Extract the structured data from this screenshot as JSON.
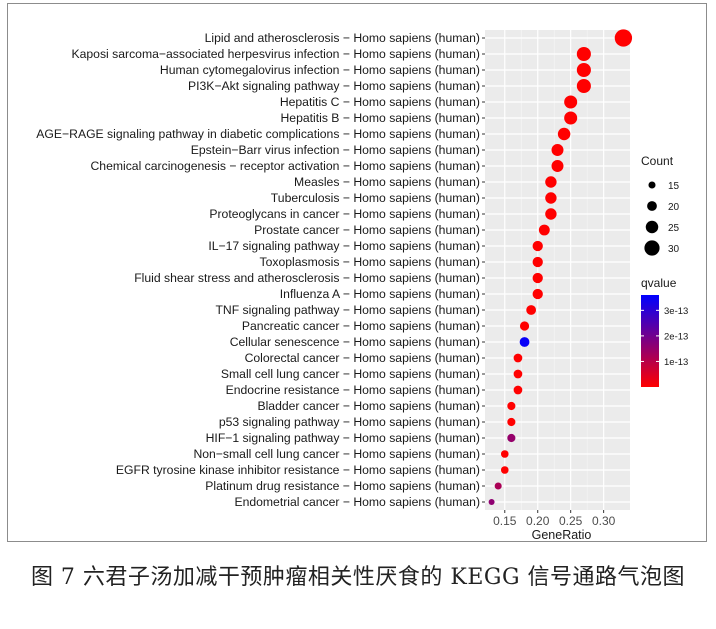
{
  "figure": {
    "caption": "图 7  六君子汤加减干预肿瘤相关性厌食的 KEGG 信号通路气泡图"
  },
  "chart_data": {
    "type": "scatter",
    "subtype": "bubble",
    "xlabel": "GeneRatio",
    "ylabel": "",
    "xlim": [
      0.12,
      0.34
    ],
    "xticks": [
      0.15,
      0.2,
      0.25,
      0.3
    ],
    "xtick_labels": [
      "0.15",
      "0.20",
      "0.25",
      "0.30"
    ],
    "grid": true,
    "background": "#ebebeb",
    "legend_position": "right",
    "size_legend": {
      "title": "Count",
      "values": [
        15,
        20,
        25,
        30
      ],
      "labels": [
        "15",
        "20",
        "25",
        "30"
      ]
    },
    "color_legend": {
      "title": "qvalue",
      "range": [
        0,
        3.6e-13
      ],
      "ticks": [
        1e-13,
        2e-13,
        3e-13
      ],
      "tick_labels": [
        "1e-13",
        "2e-13",
        "3e-13"
      ],
      "low_color": "#ff0000",
      "high_color": "#0000ff"
    },
    "points": [
      {
        "label": "Lipid and atherosclerosis − Homo sapiens (human)",
        "x": 0.33,
        "count": 34,
        "q": 0.0
      },
      {
        "label": "Kaposi sarcoma−associated herpesvirus infection − Homo sapiens (human)",
        "x": 0.27,
        "count": 28,
        "q": 0.0
      },
      {
        "label": "Human cytomegalovirus infection − Homo sapiens (human)",
        "x": 0.27,
        "count": 28,
        "q": 0.0
      },
      {
        "label": "PI3K−Akt signaling pathway − Homo sapiens (human)",
        "x": 0.27,
        "count": 28,
        "q": 0.0
      },
      {
        "label": "Hepatitis C − Homo sapiens (human)",
        "x": 0.25,
        "count": 26,
        "q": 0.0
      },
      {
        "label": "Hepatitis B − Homo sapiens (human)",
        "x": 0.25,
        "count": 26,
        "q": 0.0
      },
      {
        "label": "AGE−RAGE signaling pathway in diabetic complications − Homo sapiens (human)",
        "x": 0.24,
        "count": 25,
        "q": 0.0
      },
      {
        "label": "Epstein−Barr virus infection − Homo sapiens (human)",
        "x": 0.23,
        "count": 24,
        "q": 0.0
      },
      {
        "label": "Chemical carcinogenesis − receptor activation − Homo sapiens (human)",
        "x": 0.23,
        "count": 24,
        "q": 0.0
      },
      {
        "label": "Measles − Homo sapiens (human)",
        "x": 0.22,
        "count": 23,
        "q": 0.0
      },
      {
        "label": "Tuberculosis − Homo sapiens (human)",
        "x": 0.22,
        "count": 23,
        "q": 0.0
      },
      {
        "label": "Proteoglycans in cancer − Homo sapiens (human)",
        "x": 0.22,
        "count": 23,
        "q": 0.0
      },
      {
        "label": "Prostate cancer − Homo sapiens (human)",
        "x": 0.21,
        "count": 22,
        "q": 0.0
      },
      {
        "label": "IL−17 signaling pathway − Homo sapiens (human)",
        "x": 0.2,
        "count": 21,
        "q": 0.0
      },
      {
        "label": "Toxoplasmosis − Homo sapiens (human)",
        "x": 0.2,
        "count": 21,
        "q": 0.0
      },
      {
        "label": "Fluid shear stress and atherosclerosis − Homo sapiens (human)",
        "x": 0.2,
        "count": 21,
        "q": 0.0
      },
      {
        "label": "Influenza A − Homo sapiens (human)",
        "x": 0.2,
        "count": 21,
        "q": 0.0
      },
      {
        "label": "TNF signaling pathway − Homo sapiens (human)",
        "x": 0.19,
        "count": 20,
        "q": 0.0
      },
      {
        "label": "Pancreatic cancer − Homo sapiens (human)",
        "x": 0.18,
        "count": 19,
        "q": 0.0
      },
      {
        "label": "Cellular senescence − Homo sapiens (human)",
        "x": 0.18,
        "count": 20,
        "q": 3.5e-13
      },
      {
        "label": "Colorectal cancer − Homo sapiens (human)",
        "x": 0.17,
        "count": 18,
        "q": 0.0
      },
      {
        "label": "Small cell lung cancer − Homo sapiens (human)",
        "x": 0.17,
        "count": 18,
        "q": 0.0
      },
      {
        "label": "Endocrine resistance − Homo sapiens (human)",
        "x": 0.17,
        "count": 18,
        "q": 0.0
      },
      {
        "label": "Bladder cancer − Homo sapiens (human)",
        "x": 0.16,
        "count": 17,
        "q": 0.0
      },
      {
        "label": "p53 signaling pathway − Homo sapiens (human)",
        "x": 0.16,
        "count": 17,
        "q": 0.0
      },
      {
        "label": "HIF−1 signaling pathway − Homo sapiens (human)",
        "x": 0.16,
        "count": 17,
        "q": 1.5e-13
      },
      {
        "label": "Non−small cell lung cancer − Homo sapiens (human)",
        "x": 0.15,
        "count": 16,
        "q": 0.0
      },
      {
        "label": "EGFR tyrosine kinase inhibitor resistance − Homo sapiens (human)",
        "x": 0.15,
        "count": 16,
        "q": 0.0
      },
      {
        "label": "Platinum drug resistance − Homo sapiens (human)",
        "x": 0.14,
        "count": 15,
        "q": 1.2e-13
      },
      {
        "label": "Endometrial cancer − Homo sapiens (human)",
        "x": 0.13,
        "count": 13,
        "q": 1.6e-13
      }
    ]
  }
}
